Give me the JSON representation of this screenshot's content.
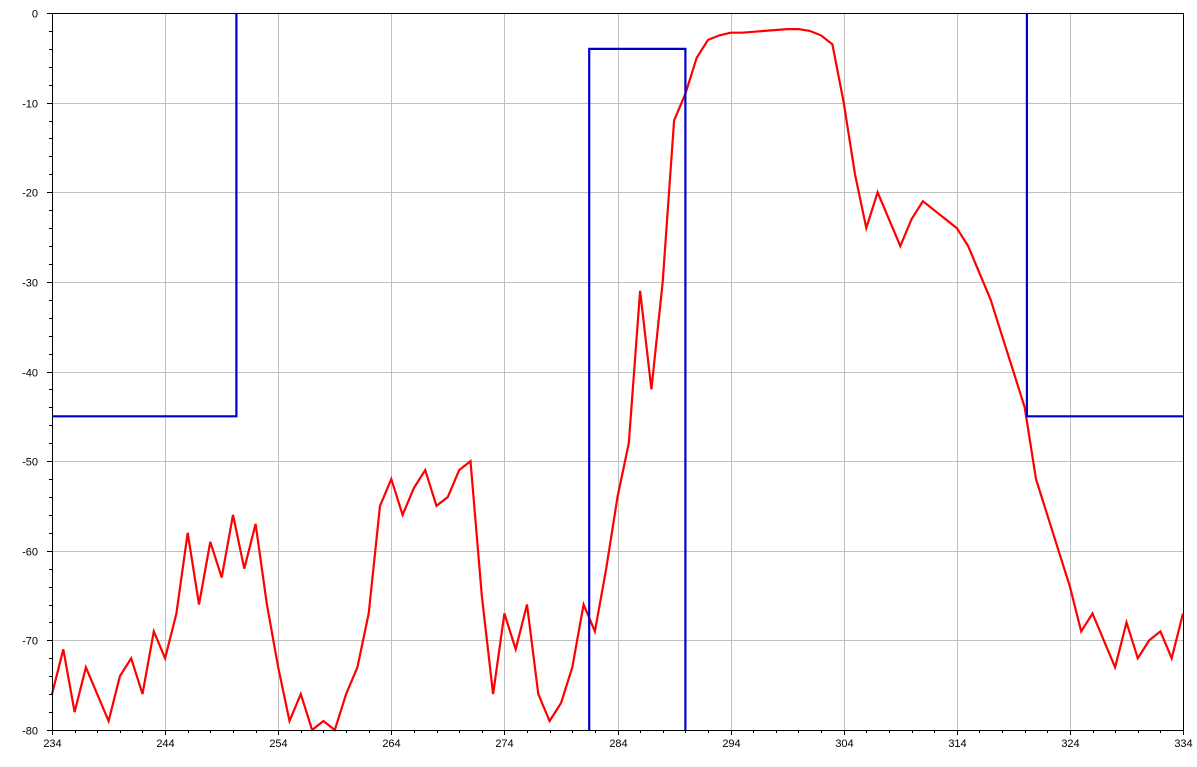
{
  "chart_data": {
    "type": "line",
    "title": "",
    "xlabel": "",
    "ylabel": "",
    "xlim": [
      234,
      334
    ],
    "ylim": [
      -80,
      0
    ],
    "grid": true,
    "legend": "none",
    "x_ticks": [
      234,
      244,
      254,
      264,
      274,
      284,
      294,
      304,
      314,
      324,
      334
    ],
    "y_ticks": [
      0,
      -10,
      -20,
      -30,
      -40,
      -50,
      -60,
      -70,
      -80
    ],
    "x_tick_labels": [
      "234",
      "244",
      "254",
      "264",
      "274",
      "284",
      "294",
      "304",
      "314",
      "324",
      "334"
    ],
    "y_tick_labels": [
      "0",
      "-10",
      "-20",
      "-30",
      "-40",
      "-50",
      "-60",
      "-70",
      "-80"
    ],
    "colors": {
      "spectrum": "#ff0000",
      "mask": "#0000cc",
      "grid": "#c0c0c0",
      "axis": "#000000"
    },
    "series": [
      {
        "color": "#ff0000",
        "points": [
          [
            234,
            -76
          ],
          [
            235,
            -71
          ],
          [
            236,
            -78
          ],
          [
            237,
            -73
          ],
          [
            238,
            -76
          ],
          [
            239,
            -79
          ],
          [
            240,
            -74
          ],
          [
            241,
            -72
          ],
          [
            242,
            -76
          ],
          [
            243,
            -69
          ],
          [
            244,
            -72
          ],
          [
            245,
            -67
          ],
          [
            246,
            -58
          ],
          [
            247,
            -66
          ],
          [
            248,
            -59
          ],
          [
            249,
            -63
          ],
          [
            250,
            -56
          ],
          [
            251,
            -62
          ],
          [
            252,
            -57
          ],
          [
            253,
            -66
          ],
          [
            254,
            -73
          ],
          [
            255,
            -79
          ],
          [
            256,
            -76
          ],
          [
            257,
            -80
          ],
          [
            258,
            -79
          ],
          [
            259,
            -80
          ],
          [
            260,
            -76
          ],
          [
            261,
            -73
          ],
          [
            262,
            -67
          ],
          [
            263,
            -55
          ],
          [
            264,
            -52
          ],
          [
            265,
            -56
          ],
          [
            266,
            -53
          ],
          [
            267,
            -51
          ],
          [
            268,
            -55
          ],
          [
            269,
            -54
          ],
          [
            270,
            -51
          ],
          [
            271,
            -50
          ],
          [
            272,
            -65
          ],
          [
            273,
            -76
          ],
          [
            274,
            -67
          ],
          [
            275,
            -71
          ],
          [
            276,
            -66
          ],
          [
            277,
            -76
          ],
          [
            278,
            -79
          ],
          [
            279,
            -77
          ],
          [
            280,
            -73
          ],
          [
            281,
            -66
          ],
          [
            282,
            -69
          ],
          [
            283,
            -62
          ],
          [
            284,
            -54
          ],
          [
            285,
            -48
          ],
          [
            286,
            -31
          ],
          [
            287,
            -42
          ],
          [
            288,
            -30
          ],
          [
            289,
            -12
          ],
          [
            290,
            -9
          ],
          [
            291,
            -5
          ],
          [
            292,
            -3
          ],
          [
            293,
            -2.5
          ],
          [
            294,
            -2.2
          ],
          [
            295,
            -2.2
          ],
          [
            296,
            -2.1
          ],
          [
            297,
            -2
          ],
          [
            298,
            -1.9
          ],
          [
            299,
            -1.8
          ],
          [
            300,
            -1.8
          ],
          [
            301,
            -2
          ],
          [
            302,
            -2.5
          ],
          [
            303,
            -3.5
          ],
          [
            304,
            -10
          ],
          [
            305,
            -18
          ],
          [
            306,
            -24
          ],
          [
            307,
            -20
          ],
          [
            308,
            -23
          ],
          [
            309,
            -26
          ],
          [
            310,
            -23
          ],
          [
            311,
            -21
          ],
          [
            312,
            -22
          ],
          [
            313,
            -23
          ],
          [
            314,
            -24
          ],
          [
            315,
            -26
          ],
          [
            316,
            -29
          ],
          [
            317,
            -32
          ],
          [
            318,
            -36
          ],
          [
            319,
            -40
          ],
          [
            320,
            -44
          ],
          [
            321,
            -52
          ],
          [
            322,
            -56
          ],
          [
            323,
            -60
          ],
          [
            324,
            -64
          ],
          [
            325,
            -69
          ],
          [
            326,
            -67
          ],
          [
            327,
            -70
          ],
          [
            328,
            -73
          ],
          [
            329,
            -68
          ],
          [
            330,
            -72
          ],
          [
            331,
            -70
          ],
          [
            332,
            -69
          ],
          [
            333,
            -72
          ],
          [
            334,
            -67
          ]
        ]
      },
      {
        "color": "#0000cc",
        "points": [
          [
            234,
            -45
          ],
          [
            250.3,
            -45
          ],
          [
            250.3,
            0
          ],
          [
            null,
            null
          ],
          [
            281.5,
            -80
          ],
          [
            281.5,
            -4
          ],
          [
            290,
            -4
          ],
          [
            290,
            -80
          ],
          [
            null,
            null
          ],
          [
            320.2,
            0
          ],
          [
            320.2,
            -45
          ],
          [
            334,
            -45
          ]
        ]
      }
    ]
  }
}
